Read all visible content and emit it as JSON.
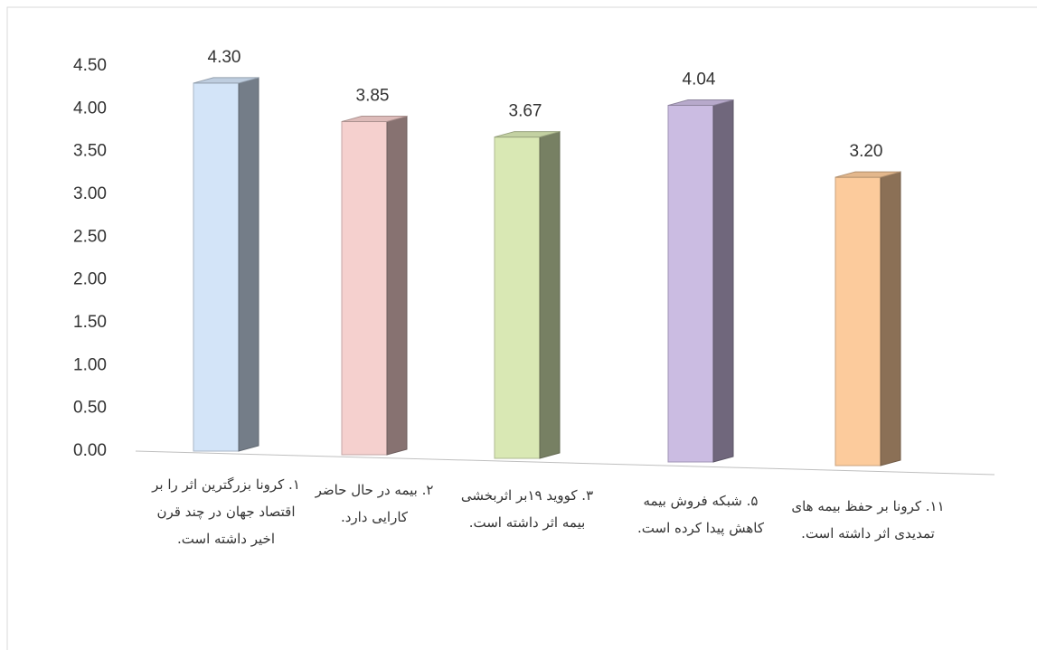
{
  "chart_data": {
    "type": "bar3d",
    "categories": [
      "۱. کرونا بزرگترین اثر را بر اقتصاد جهان در چند قرن اخیر داشته است.",
      "۲. بیمه در حال حاضر کارایی دارد.",
      "۳. کووید ۱۹بر اثربخشی بیمه اثر داشته است.",
      "۵. شبکه فروش بیمه کاهش پیدا کرده است.",
      "۱۱. کرونا بر حفظ بیمه های تمدیدی اثر داشته است."
    ],
    "values": [
      4.3,
      3.85,
      3.67,
      4.04,
      3.2
    ],
    "value_labels": [
      "4.30",
      "3.85",
      "3.67",
      "4.04",
      "3.20"
    ],
    "colors": [
      "#d3e4f8",
      "#f5d0ce",
      "#d9e8b4",
      "#cbbce2",
      "#fccb9c"
    ],
    "ylim": [
      0,
      4.5
    ],
    "yticks": [
      {
        "value": 0,
        "label": "0.00"
      },
      {
        "value": 0.5,
        "label": "0.50"
      },
      {
        "value": 1,
        "label": "1.00"
      },
      {
        "value": 1.5,
        "label": "1.50"
      },
      {
        "value": 2,
        "label": "2.00"
      },
      {
        "value": 2.5,
        "label": "2.50"
      },
      {
        "value": 3,
        "label": "3.00"
      },
      {
        "value": 3.5,
        "label": "3.50"
      },
      {
        "value": 4,
        "label": "4.00"
      },
      {
        "value": 4.5,
        "label": "4.50"
      }
    ]
  }
}
